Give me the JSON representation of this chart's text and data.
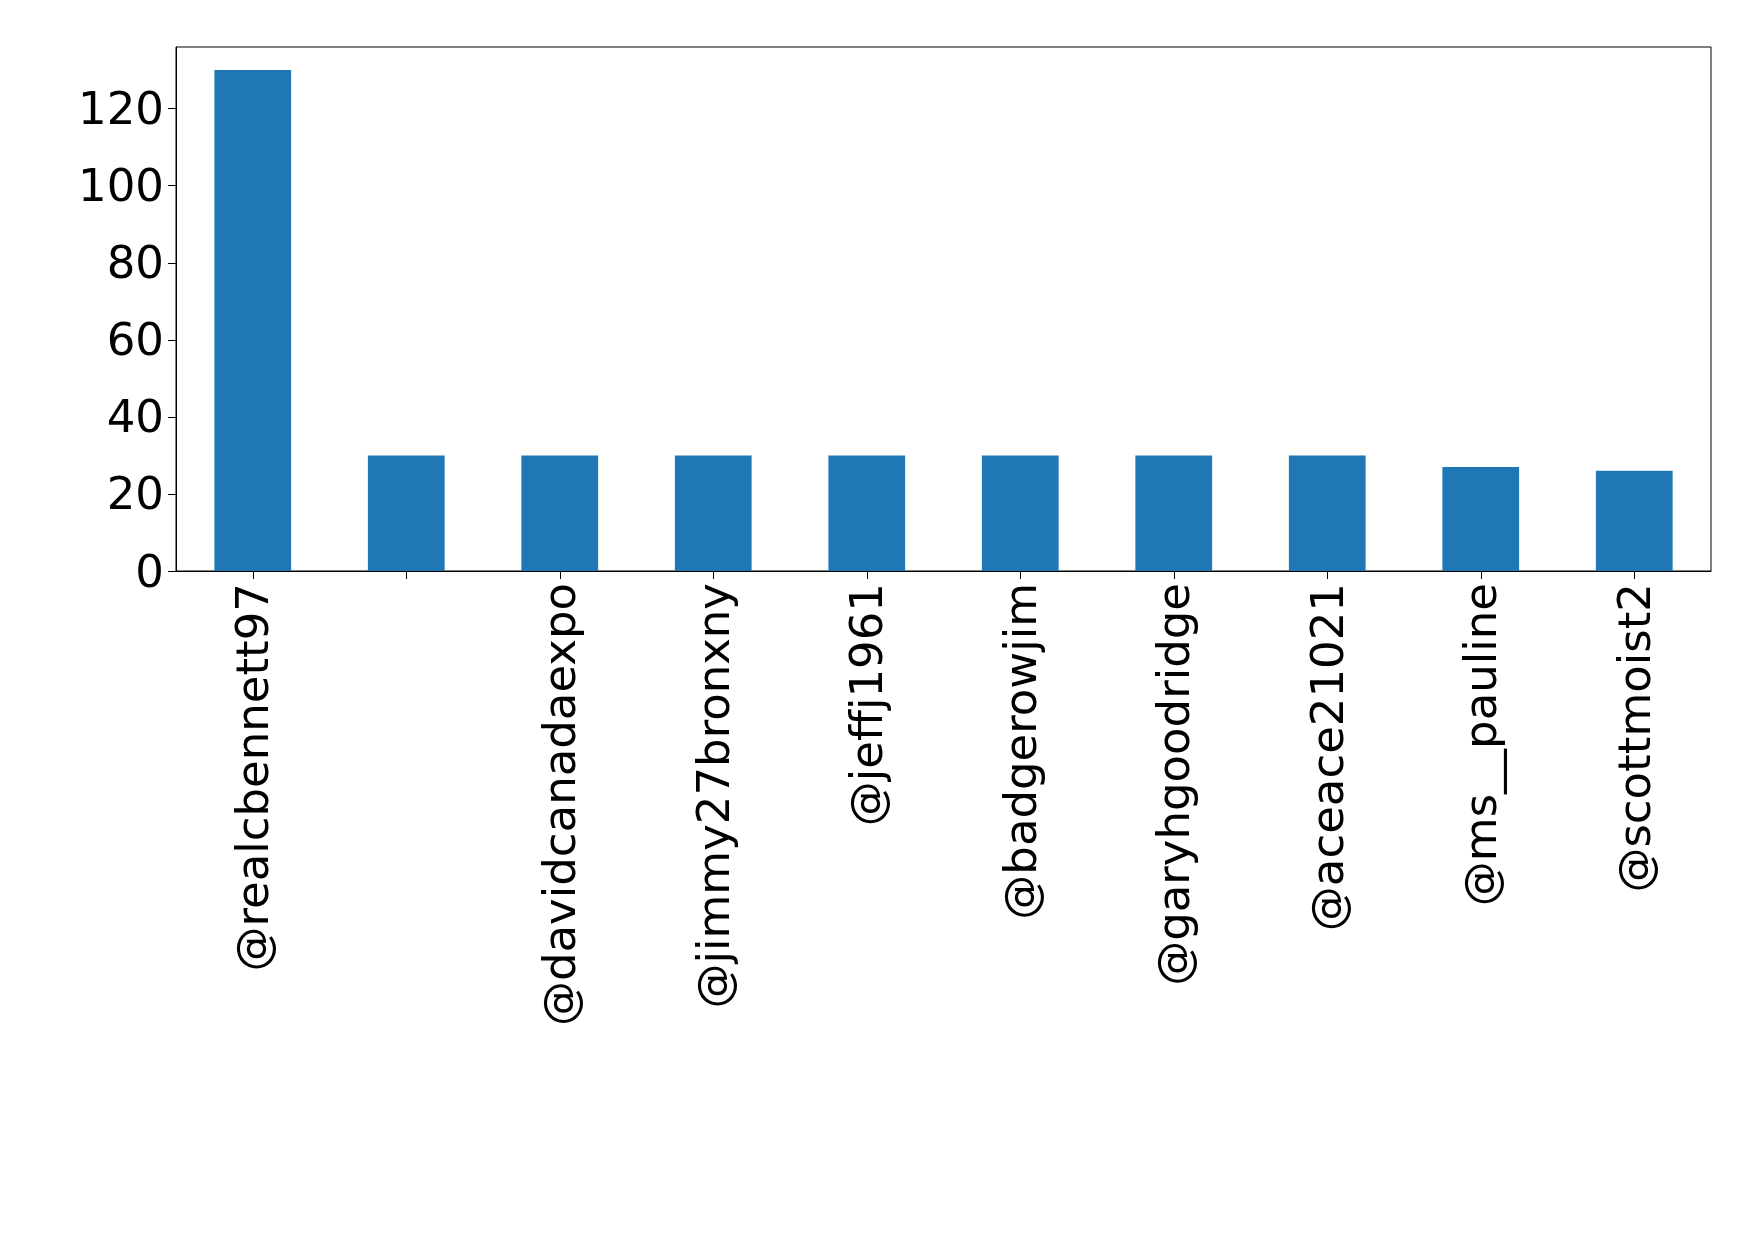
{
  "chart_data": {
    "type": "bar",
    "categories": [
      "@realcbennett97",
      null,
      "@davidcanadaexpo",
      "@jimmy27bronxny",
      "@jeffj1961",
      "@badgerowjim",
      "@garyhgoodridge",
      "@aceace21021",
      "@ms__pauline",
      "@scottmoist2"
    ],
    "values": [
      130,
      30,
      30,
      30,
      30,
      30,
      30,
      30,
      27,
      26
    ],
    "color": "#1f77b4",
    "ylim": [
      0,
      136
    ],
    "yticks": [
      0,
      20,
      40,
      60,
      80,
      100,
      120
    ],
    "grid": false
  }
}
